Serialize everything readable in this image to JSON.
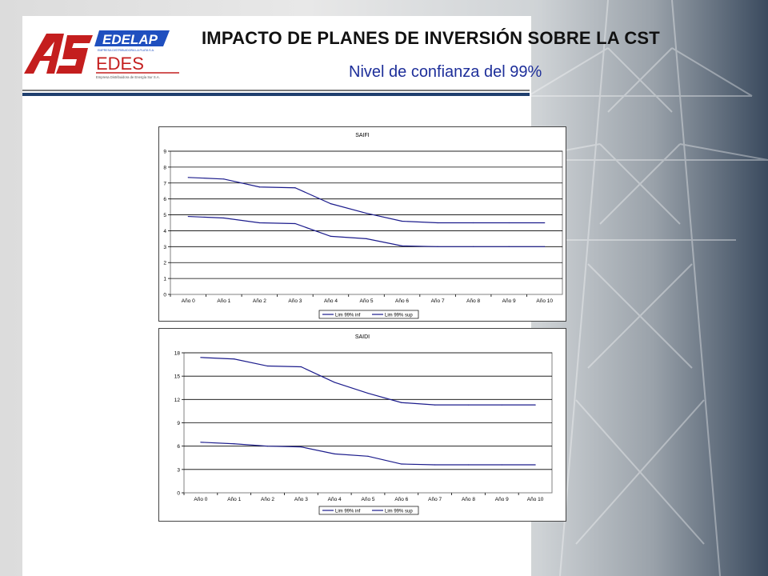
{
  "header": {
    "title": "IMPACTO DE PLANES DE INVERSIÓN SOBRE LA CST",
    "subtitle": "Nivel de confianza del  99%"
  },
  "logo": {
    "monogram": "AS",
    "brand1": "EDELAP",
    "brand1_tagline": "EMPRESA DISTRIBUIDORA LA PLATA S.A.",
    "brand2": "EDES",
    "brand2_tagline": "Empresa Distribuidora de Energía Sur S.A."
  },
  "colors": {
    "title": "#111111",
    "subtitle": "#1e2f9a",
    "series": "#1c1c8c",
    "logo_red": "#c41e1e",
    "logo_blue": "#1f4fbf"
  },
  "chart_data": [
    {
      "type": "line",
      "title": "SAIFI",
      "categories": [
        "Año 0",
        "Año 1",
        "Año 2",
        "Año 3",
        "Año 4",
        "Año 5",
        "Año 6",
        "Año 7",
        "Año 8",
        "Año 9",
        "Año 10"
      ],
      "series": [
        {
          "name": "Lim 99% inf",
          "values": [
            4.9,
            4.8,
            4.5,
            4.45,
            3.65,
            3.5,
            3.05,
            3.0,
            3.0,
            3.0,
            3.0
          ]
        },
        {
          "name": "Lim 99% sup",
          "values": [
            7.35,
            7.25,
            6.75,
            6.7,
            5.7,
            5.1,
            4.6,
            4.5,
            4.5,
            4.5,
            4.5
          ]
        }
      ],
      "ylim": [
        0,
        9
      ],
      "yticks": [
        "0",
        "1",
        "2",
        "3",
        "4",
        "5",
        "6",
        "7",
        "8",
        "9"
      ],
      "grid": true,
      "legend": "bottom"
    },
    {
      "type": "line",
      "title": "SAIDI",
      "categories": [
        "Año 0",
        "Año 1",
        "Año 2",
        "Año 3",
        "Año 4",
        "Año 5",
        "Año 6",
        "Año 7",
        "Año 8",
        "Año 9",
        "Año 10"
      ],
      "series": [
        {
          "name": "Lim 99% inf",
          "values": [
            6.5,
            6.3,
            6.0,
            5.9,
            5.0,
            4.7,
            3.7,
            3.6,
            3.6,
            3.6,
            3.6
          ]
        },
        {
          "name": "Lim 99% sup",
          "values": [
            17.4,
            17.2,
            16.3,
            16.2,
            14.2,
            12.8,
            11.6,
            11.3,
            11.3,
            11.3,
            11.3
          ]
        }
      ],
      "ylim": [
        0,
        18
      ],
      "yticks": [
        "0",
        "3",
        "6",
        "9",
        "12",
        "15",
        "18"
      ],
      "grid": true,
      "legend": "bottom"
    }
  ]
}
